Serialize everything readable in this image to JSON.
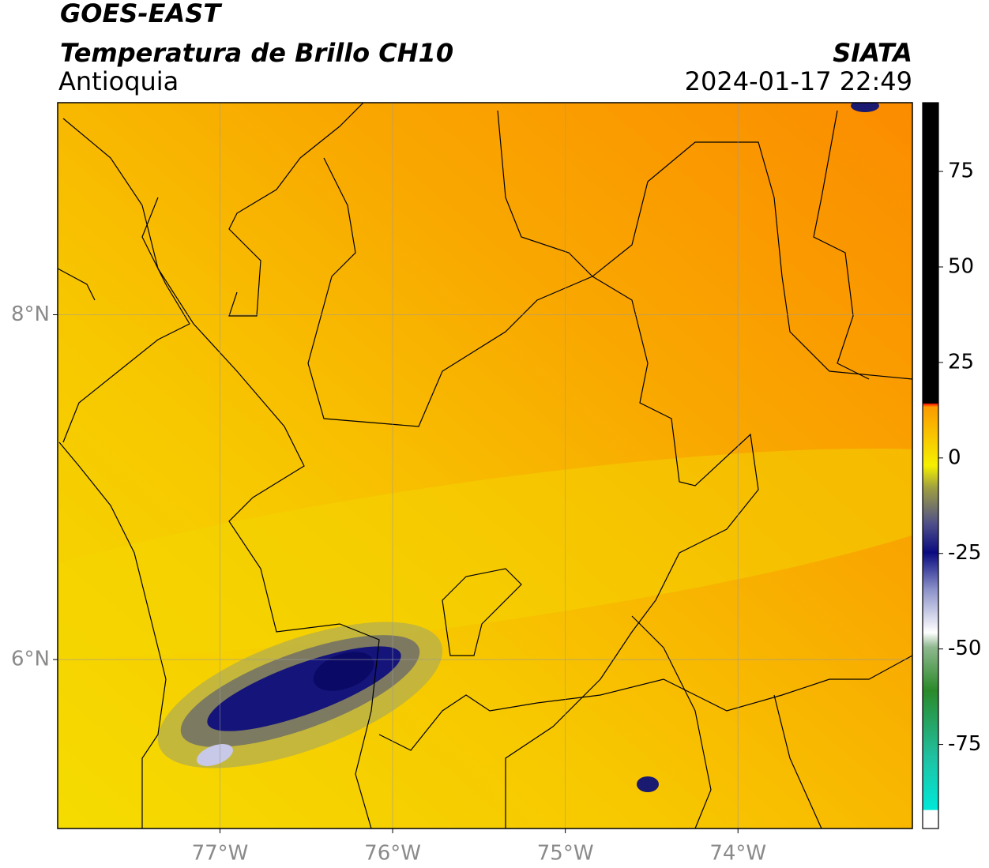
{
  "header": {
    "title": "GOES-EAST",
    "subtitle": "Temperatura de Brillo CH10",
    "region": "Antioquia",
    "source": "SIATA",
    "datetime": "2024-01-17 22:49"
  },
  "map": {
    "xlim": [
      -77.94,
      -72.99
    ],
    "ylim": [
      5.02,
      9.23
    ],
    "grid": true,
    "xticks": [
      {
        "value": -77,
        "label": "77°W"
      },
      {
        "value": -76,
        "label": "76°W"
      },
      {
        "value": -75,
        "label": "75°W"
      },
      {
        "value": -74,
        "label": "74°W"
      }
    ],
    "yticks": [
      {
        "value": 6,
        "label": "6°N"
      },
      {
        "value": 8,
        "label": "8°N"
      }
    ]
  },
  "colorbar": {
    "lim": [
      -97,
      93
    ],
    "ticks": [
      -75,
      -50,
      -25,
      0,
      25,
      50,
      75
    ]
  }
}
